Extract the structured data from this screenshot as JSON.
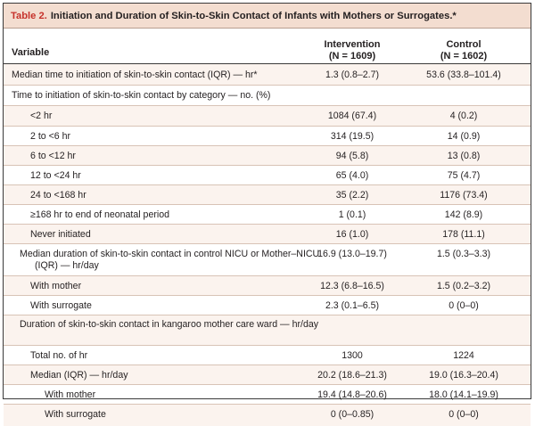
{
  "table": {
    "label": "Table 2.",
    "title": "Initiation and Duration of Skin-to-Skin Contact of Infants with Mothers or Surrogates.*",
    "headers": {
      "variable": "Variable",
      "intervention": "Intervention",
      "intervention_n": "(N = 1609)",
      "control": "Control",
      "control_n": "(N = 1602)"
    },
    "rows": [
      {
        "label": "Median time to initiation of skin-to-skin contact (IQR) — hr*",
        "intervention": "1.3 (0.8–2.7)",
        "control": "53.6 (33.8–101.4)"
      },
      {
        "label": "Time to initiation of skin-to-skin contact by category — no. (%)",
        "intervention": "",
        "control": ""
      },
      {
        "label": "<2 hr",
        "intervention": "1084 (67.4)",
        "control": "4 (0.2)"
      },
      {
        "label": "2 to <6 hr",
        "intervention": "314 (19.5)",
        "control": "14 (0.9)"
      },
      {
        "label": "6 to <12 hr",
        "intervention": "94 (5.8)",
        "control": "13 (0.8)"
      },
      {
        "label": "12 to <24 hr",
        "intervention": "65 (4.0)",
        "control": "75 (4.7)"
      },
      {
        "label": "24 to <168 hr",
        "intervention": "35 (2.2)",
        "control": "1176 (73.4)"
      },
      {
        "label": "≥168 hr to end of neonatal period",
        "intervention": "1 (0.1)",
        "control": "142 (8.9)"
      },
      {
        "label": "Never initiated",
        "intervention": "16 (1.0)",
        "control": "178 (11.1)"
      },
      {
        "label": "Median duration of skin-to-skin contact in control NICU or Mother–NICU (IQR) — hr/day",
        "intervention": "16.9 (13.0–19.7)",
        "control": "1.5 (0.3–3.3)"
      },
      {
        "label": "With mother",
        "intervention": "12.3 (6.8–16.5)",
        "control": "1.5 (0.2–3.2)"
      },
      {
        "label": "With surrogate",
        "intervention": "2.3 (0.1–6.5)",
        "control": "0 (0–0)"
      },
      {
        "label": "Duration of skin-to-skin contact in kangaroo mother care ward — hr/day",
        "intervention": "",
        "control": ""
      },
      {
        "label": "Total no. of hr",
        "intervention": "1300",
        "control": "1224"
      },
      {
        "label": "Median (IQR) — hr/day",
        "intervention": "20.2 (18.6–21.3)",
        "control": "19.0 (16.3–20.4)"
      },
      {
        "label": "With mother",
        "intervention": "19.4 (14.8–20.6)",
        "control": "18.0 (14.1–19.9)"
      },
      {
        "label": "With surrogate",
        "intervention": "0 (0–0.85)",
        "control": "0 (0–0)"
      }
    ]
  }
}
